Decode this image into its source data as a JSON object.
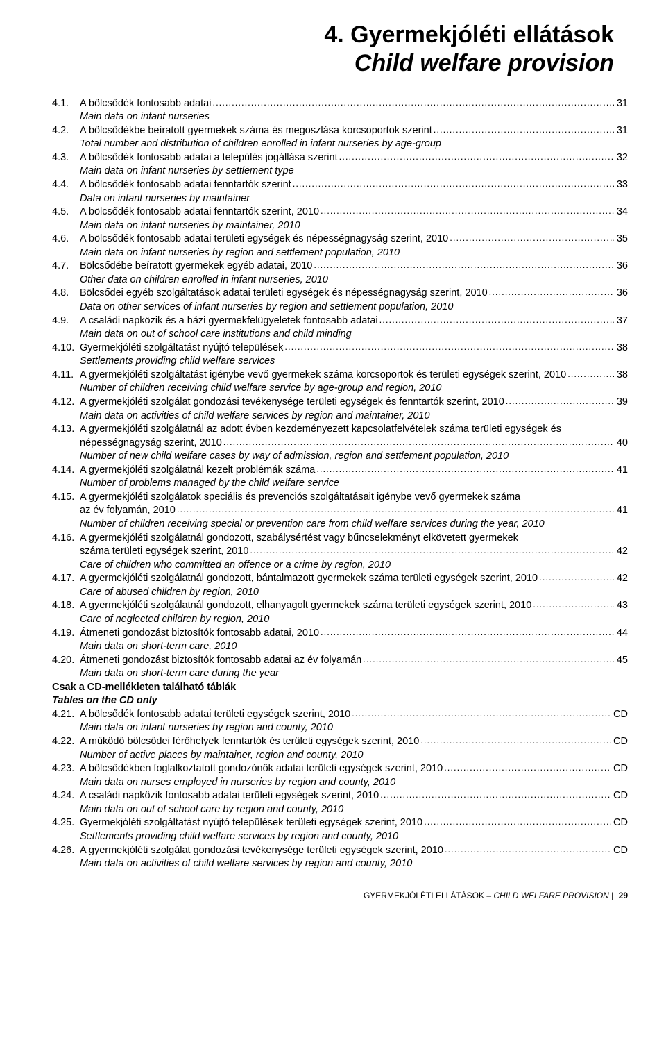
{
  "title": {
    "hu": "4. Gyermekjóléti ellátások",
    "en": "Child welfare provision"
  },
  "sections": {
    "cd_only_hu": "Csak a CD-mellékleten található táblák",
    "cd_only_en": "Tables on the CD only"
  },
  "toc": [
    {
      "num": "4.1.",
      "label": "A bölcsődék fontosabb adatai",
      "page": "31",
      "desc": "Main data on infant nurseries"
    },
    {
      "num": "4.2.",
      "label": "A bölcsődékbe beíratott gyermekek száma és megoszlása korcsoportok szerint",
      "page": "31",
      "desc": "Total number and distribution of children enrolled in infant nurseries by age-group"
    },
    {
      "num": "4.3.",
      "label": "A bölcsődék fontosabb adatai a település jogállása szerint",
      "page": "32",
      "desc": "Main data on infant nurseries by settlement type"
    },
    {
      "num": "4.4.",
      "label": "A bölcsődék fontosabb adatai fenntartók szerint",
      "page": "33",
      "desc": "Data on infant nurseries by maintainer"
    },
    {
      "num": "4.5.",
      "label": "A bölcsődék fontosabb adatai fenntartók szerint, 2010",
      "page": "34",
      "desc": "Main data on infant nurseries by maintainer, 2010"
    },
    {
      "num": "4.6.",
      "label": "A bölcsődék fontosabb adatai területi egységek és népességnagyság szerint, 2010",
      "page": "35",
      "desc": "Main data on infant nurseries by region and settlement population, 2010"
    },
    {
      "num": "4.7.",
      "label": "Bölcsődébe beíratott gyermekek egyéb adatai, 2010",
      "page": "36",
      "desc": "Other data on children enrolled in infant nurseries, 2010"
    },
    {
      "num": "4.8.",
      "label": "Bölcsődei egyéb szolgáltatások adatai területi egységek és népességnagyság szerint, 2010",
      "page": "36",
      "desc": "Data on other services of infant nurseries by region and settlement population, 2010"
    },
    {
      "num": "4.9.",
      "label": "A családi napközik és a házi gyermekfelügyeletek fontosabb adatai",
      "page": "37",
      "desc": "Main data on out of school care institutions and child minding"
    },
    {
      "num": "4.10.",
      "label": "Gyermekjóléti szolgáltatást nyújtó települések",
      "page": "38",
      "desc": "Settlements providing child welfare services"
    },
    {
      "num": "4.11.",
      "label": "A gyermekjóléti szolgáltatást igénybe vevő gyermekek száma korcsoportok és területi egységek szerint, 2010",
      "page": "38",
      "desc": "Number of children receiving child welfare service by age-group and region, 2010"
    },
    {
      "num": "4.12.",
      "label": "A gyermekjóléti szolgálat gondozási tevékenysége területi egységek és fenntartók szerint, 2010",
      "page": "39",
      "desc": "Main data on activities of child welfare services by region and maintainer, 2010"
    },
    {
      "num": "4.13.",
      "label": "A gyermekjóléti szolgálatnál az adott évben kezdeményezett kapcsolatfelvételek száma területi egységek és",
      "cont": "népességnagyság szerint, 2010",
      "page": "40",
      "desc": "Number of new child welfare cases by way of admission, region and settlement population, 2010"
    },
    {
      "num": "4.14.",
      "label": "A gyermekjóléti szolgálatnál kezelt problémák száma",
      "page": "41",
      "desc": "Number of problems managed by the child welfare service"
    },
    {
      "num": "4.15.",
      "label": "A gyermekjóléti szolgálatok speciális és prevenciós szolgáltatásait igénybe vevő gyermekek száma",
      "cont": "az év folyamán, 2010",
      "page": "41",
      "desc": "Number of children receiving special or prevention care from child welfare services during the year, 2010"
    },
    {
      "num": "4.16.",
      "label": "A gyermekjóléti szolgálatnál gondozott, szabálysértést vagy bűncselekményt elkövetett gyermekek",
      "cont": "száma területi egységek szerint, 2010",
      "page": "42",
      "desc": "Care of children who committed an offence or a crime by region, 2010"
    },
    {
      "num": "4.17.",
      "label": "A gyermekjóléti szolgálatnál gondozott, bántalmazott gyermekek száma területi egységek szerint, 2010",
      "page": "42",
      "desc": "Care of abused children by region, 2010"
    },
    {
      "num": "4.18.",
      "label": "A gyermekjóléti szolgálatnál gondozott, elhanyagolt gyermekek száma területi egységek szerint, 2010",
      "page": "43",
      "desc": "Care of neglected children by region, 2010"
    },
    {
      "num": "4.19.",
      "label": "Átmeneti gondozást biztosítók fontosabb adatai, 2010",
      "page": "44",
      "desc": "Main data on short-term care, 2010"
    },
    {
      "num": "4.20.",
      "label": "Átmeneti gondozást biztosítók fontosabb adatai az év folyamán",
      "page": "45",
      "desc": "Main data on short-term care during the year"
    }
  ],
  "toc_cd": [
    {
      "num": "4.21.",
      "label": "A bölcsődék fontosabb adatai területi egységek szerint, 2010",
      "page": "CD",
      "desc": "Main data on infant nurseries by region and county, 2010"
    },
    {
      "num": "4.22.",
      "label": "A működő bölcsődei férőhelyek fenntartók és területi egységek szerint, 2010",
      "page": "CD",
      "desc": "Number of active places by maintainer, region and county, 2010"
    },
    {
      "num": "4.23.",
      "label": "A bölcsődékben foglalkoztatott gondozónők adatai területi egységek szerint, 2010",
      "page": "CD",
      "desc": "Main data on nurses employed in nurseries by region and county, 2010"
    },
    {
      "num": "4.24.",
      "label": "A családi napközik fontosabb adatai területi egységek szerint, 2010",
      "page": "CD",
      "desc": "Main data on out of school care by region and county, 2010"
    },
    {
      "num": "4.25.",
      "label": "Gyermekjóléti szolgáltatást nyújtó települések területi egységek szerint, 2010",
      "page": "CD",
      "desc": "Settlements providing child welfare services by region and county, 2010"
    },
    {
      "num": "4.26.",
      "label": "A gyermekjóléti szolgálat gondozási tevékenysége területi egységek szerint, 2010",
      "page": "CD",
      "desc": "Main data on activities of child welfare services by region and county, 2010"
    }
  ],
  "footer": {
    "hu": "GYERMEKJÓLÉTI ELLÁTÁSOK – ",
    "en": "CHILD WELFARE PROVISION",
    "sep": " | ",
    "page": "29"
  }
}
